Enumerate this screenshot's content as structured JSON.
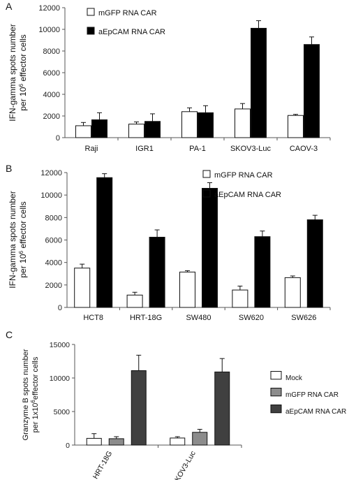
{
  "chart_data": [
    {
      "panel_label": "A",
      "type": "bar",
      "ylabel_line1": "IFN-gamma  spots number",
      "ylabel_line2": "per 10",
      "ylabel_sup": "6",
      "ylabel_line2_end": " effector cells",
      "ylim": [
        0,
        12000
      ],
      "yticks": [
        "0",
        "2000",
        "4000",
        "6000",
        "8000",
        "10000",
        "12000"
      ],
      "categories": [
        "Raji",
        "IGR1",
        "PA-1",
        "SKOV3-Luc",
        "CAOV-3"
      ],
      "legend_position": "top-left",
      "series": [
        {
          "name": "mGFP RNA CAR",
          "color": "#ffffff",
          "values": [
            1100,
            1250,
            2400,
            2650,
            2050
          ],
          "errors": [
            300,
            200,
            350,
            500,
            100
          ]
        },
        {
          "name": "aEpCAM RNA CAR",
          "color": "#000000",
          "values": [
            1650,
            1500,
            2300,
            10100,
            8600
          ],
          "errors": [
            650,
            700,
            650,
            700,
            700
          ]
        }
      ]
    },
    {
      "panel_label": "B",
      "type": "bar",
      "ylabel_line1": "IFN-gamma  spots number",
      "ylabel_line2": "per 10",
      "ylabel_sup": "6",
      "ylabel_line2_end": " effector cells",
      "ylim": [
        0,
        12000
      ],
      "yticks": [
        "0",
        "2000",
        "4000",
        "6000",
        "8000",
        "10000",
        "12000"
      ],
      "categories": [
        "HCT8",
        "HRT-18G",
        "SW480",
        "SW620",
        "SW626"
      ],
      "legend_position": "top-right",
      "series": [
        {
          "name": "mGFP RNA CAR",
          "color": "#ffffff",
          "values": [
            3500,
            1100,
            3150,
            1550,
            2650
          ],
          "errors": [
            350,
            250,
            120,
            350,
            150
          ]
        },
        {
          "name": "aEpCAM RNA CAR",
          "color": "#000000",
          "values": [
            11550,
            6250,
            10600,
            6300,
            7800
          ],
          "errors": [
            350,
            650,
            500,
            500,
            400
          ]
        }
      ]
    },
    {
      "panel_label": "C",
      "type": "bar",
      "ylabel_line1": "Granzyme B spots number",
      "ylabel_line2": "per 1x10",
      "ylabel_sup": "6",
      "ylabel_line2_end": "effector cells",
      "ylim": [
        0,
        15000
      ],
      "yticks": [
        "0",
        "5000",
        "10000",
        "15000"
      ],
      "categories": [
        "HRT-18G",
        "SKOV3-Luc"
      ],
      "legend_position": "right",
      "series": [
        {
          "name": "Mock",
          "color": "#ffffff",
          "values": [
            1000,
            1050
          ],
          "errors": [
            700,
            200
          ]
        },
        {
          "name": "mGFP RNA CAR",
          "color": "#8c8c8c",
          "values": [
            950,
            1900
          ],
          "errors": [
            300,
            450
          ]
        },
        {
          "name": "aEpCAM RNA CAR",
          "color": "#404040",
          "values": [
            11100,
            10900
          ],
          "errors": [
            2300,
            2000
          ]
        }
      ]
    }
  ]
}
